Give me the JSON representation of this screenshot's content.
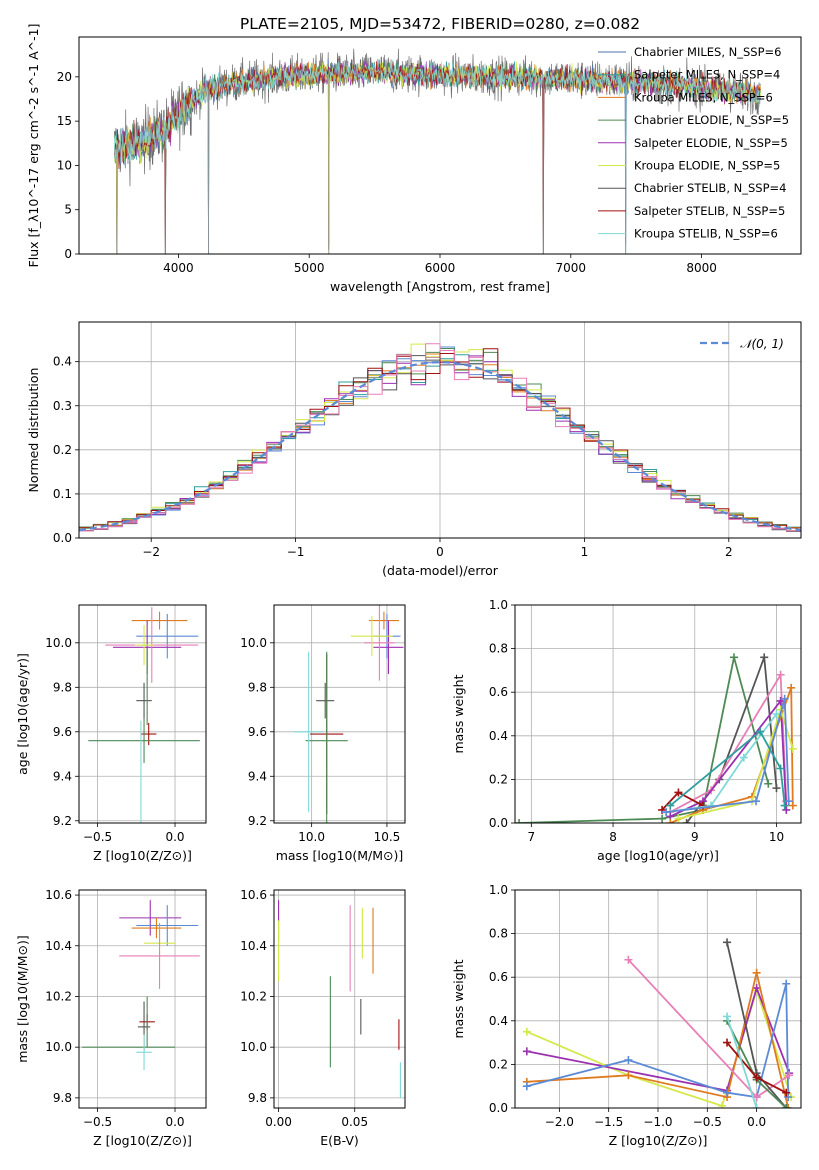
{
  "page_title": "PLATE=2105, MJD=53472, FIBERID=0280, z=0.082",
  "colors": {
    "Chabrier MILES": "#4c72b0",
    "Salpeter MILES": "#2e9e9e",
    "Kroupa MILES": "#e07b1f",
    "Chabrier ELODIE": "#4e8a55",
    "Salpeter ELODIE": "#9b30b0",
    "Kroupa ELODIE": "#d5e84a",
    "Chabrier STELIB": "#555555",
    "Salpeter STELIB": "#a01010",
    "Kroupa STELIB": "#7fd8d8",
    "pink": "#e87fb8",
    "blue": "#5b8ad6",
    "gauss": "#5b8ad6"
  },
  "chart_data": [
    {
      "id": "spectrum",
      "type": "line",
      "title": "PLATE=2105, MJD=53472, FIBERID=0280, z=0.082",
      "xlabel": "wavelength [Angstrom, rest frame]",
      "ylabel": "Flux [f_λ10^-17 erg cm^-2 s^-1 A^-1]",
      "xlim": [
        3240,
        8760
      ],
      "ylim": [
        0,
        24.5
      ],
      "xticks": [
        4000,
        5000,
        6000,
        7000,
        8000
      ],
      "yticks": [
        0,
        5,
        10,
        15,
        20
      ],
      "grid": false,
      "legend_position": "right",
      "series": [
        {
          "name": "Chabrier MILES, N_SSP=6"
        },
        {
          "name": "Salpeter MILES, N_SSP=4"
        },
        {
          "name": "Kroupa MILES, N_SSP=6"
        },
        {
          "name": "Chabrier ELODIE, N_SSP=5"
        },
        {
          "name": "Salpeter ELODIE, N_SSP=5"
        },
        {
          "name": "Kroupa ELODIE, N_SSP=5"
        },
        {
          "name": "Chabrier STELIB, N_SSP=4"
        },
        {
          "name": "Salpeter STELIB, N_SSP=5"
        },
        {
          "name": "Kroupa STELIB, N_SSP=6"
        }
      ],
      "continuum_nodes": {
        "x": [
          3500,
          3700,
          3900,
          4000,
          4200,
          4500,
          5000,
          5500,
          6000,
          6500,
          7000,
          7500,
          8000,
          8450
        ],
        "y": [
          12,
          12.5,
          14,
          16,
          18.5,
          19.5,
          20.3,
          20.5,
          20.2,
          20,
          19.8,
          19.4,
          18.8,
          18
        ]
      },
      "absorption_lines": [
        {
          "x": 3530,
          "depth": 20
        },
        {
          "x": 3900,
          "depth": 19
        },
        {
          "x": 4230,
          "depth": 22
        },
        {
          "x": 5150,
          "depth": 20
        },
        {
          "x": 6790,
          "depth": 20
        },
        {
          "x": 7420,
          "depth": 19
        }
      ]
    },
    {
      "id": "residuals",
      "type": "bar",
      "xlabel": "(data-model)/error",
      "ylabel": "Normed distribution",
      "xlim": [
        -2.5,
        2.5
      ],
      "ylim": [
        0,
        0.49
      ],
      "xticks": [
        -2,
        -1,
        0,
        1,
        2
      ],
      "yticks": [
        0.0,
        0.1,
        0.2,
        0.3,
        0.4
      ],
      "grid": true,
      "legend": "𝒩(0, 1)",
      "legend_position": "top-right",
      "bin_width": 0.1,
      "gauss_line": "dashed normal curve N(0,1)"
    },
    {
      "id": "age_vs_Z",
      "type": "scatter",
      "xlabel": "Z [log10(Z/Z⊙)]",
      "ylabel": "age  [log10(age/yr)]",
      "xlim": [
        -0.62,
        0.2
      ],
      "ylim": [
        9.19,
        10.17
      ],
      "xticks": [
        -0.5,
        0.0
      ],
      "yticks": [
        9.2,
        9.4,
        9.6,
        9.8,
        10.0
      ],
      "grid": true,
      "points": [
        {
          "c": "Kroupa MILES",
          "x": -0.1,
          "y": 10.1,
          "xe": 0.18,
          "ye": 0.04
        },
        {
          "c": "blue",
          "x": -0.05,
          "y": 10.03,
          "xe": 0.2,
          "ye": 0.1
        },
        {
          "c": "Salpeter ELODIE",
          "x": -0.18,
          "y": 9.98,
          "xe": 0.22,
          "ye": 0.12
        },
        {
          "c": "pink",
          "x": -0.15,
          "y": 9.99,
          "xe": 0.3,
          "ye": 0.17
        },
        {
          "c": "Kroupa ELODIE",
          "x": -0.2,
          "y": 9.99,
          "xe": 0.06,
          "ye": 0.09
        },
        {
          "c": "Chabrier STELIB",
          "x": -0.2,
          "y": 9.74,
          "xe": 0.05,
          "ye": 0.08
        },
        {
          "c": "Salpeter STELIB",
          "x": -0.17,
          "y": 9.59,
          "xe": 0.05,
          "ye": 0.05
        },
        {
          "c": "Chabrier ELODIE",
          "x": -0.2,
          "y": 9.56,
          "xe": 0.36,
          "ye": 0.1
        },
        {
          "c": "Chabrier ELODIE",
          "x": -0.18,
          "y": 9.8,
          "xe": 0.0,
          "ye": 0.17
        },
        {
          "c": "Kroupa STELIB",
          "x": -0.22,
          "y": 9.42,
          "xe": 0.0,
          "ye": 0.23
        }
      ]
    },
    {
      "id": "age_vs_mass",
      "type": "scatter",
      "xlabel": "mass [log10(M/M⊙)]",
      "ylabel": "",
      "xlim": [
        9.75,
        10.62
      ],
      "ylim": [
        9.19,
        10.17
      ],
      "xticks": [
        10.0,
        10.5
      ],
      "yticks": [
        9.2,
        9.4,
        9.6,
        9.8,
        10.0
      ],
      "grid": true,
      "points": [
        {
          "c": "Kroupa MILES",
          "x": 10.48,
          "y": 10.1,
          "xe": 0.1,
          "ye": 0.04
        },
        {
          "c": "blue",
          "x": 10.5,
          "y": 10.03,
          "xe": 0.09,
          "ye": 0.1
        },
        {
          "c": "Salpeter ELODIE",
          "x": 10.51,
          "y": 9.98,
          "xe": 0.1,
          "ye": 0.12
        },
        {
          "c": "pink",
          "x": 10.45,
          "y": 10.0,
          "xe": 0.1,
          "ye": 0.17
        },
        {
          "c": "Kroupa ELODIE",
          "x": 10.4,
          "y": 10.03,
          "xe": 0.14,
          "ye": 0.09
        },
        {
          "c": "Chabrier STELIB",
          "x": 10.09,
          "y": 9.74,
          "xe": 0.06,
          "ye": 0.08
        },
        {
          "c": "Salpeter STELIB",
          "x": 10.1,
          "y": 9.59,
          "xe": 0.11,
          "ye": 0.36
        },
        {
          "c": "Chabrier ELODIE",
          "x": 10.1,
          "y": 9.56,
          "xe": 0.14,
          "ye": 0.4
        },
        {
          "c": "Kroupa STELIB",
          "x": 9.98,
          "y": 9.6,
          "xe": 0.1,
          "ye": 0.36
        }
      ]
    },
    {
      "id": "mw_vs_age",
      "type": "line",
      "xlabel": "age  [log10(age/yr)]",
      "ylabel": "mass weight",
      "xlim": [
        6.8,
        10.3
      ],
      "ylim": [
        0,
        1.0
      ],
      "xticks": [
        7,
        8,
        9,
        10
      ],
      "yticks": [
        0.0,
        0.2,
        0.4,
        0.6,
        0.8,
        1.0
      ],
      "grid": true,
      "series": [
        {
          "c": "Chabrier ELODIE",
          "x": [
            6.85,
            8.6,
            9.1,
            9.48,
            9.9
          ],
          "y": [
            0.0,
            0.02,
            0.06,
            0.76,
            0.18
          ]
        },
        {
          "c": "Chabrier STELIB",
          "x": [
            8.9,
            9.3,
            9.85,
            10.0
          ],
          "y": [
            0.0,
            0.2,
            0.76,
            0.16
          ]
        },
        {
          "c": "pink",
          "x": [
            8.7,
            9.2,
            10.05,
            10.12
          ],
          "y": [
            0.05,
            0.15,
            0.68,
            0.1
          ]
        },
        {
          "c": "Salpeter ELODIE",
          "x": [
            8.7,
            9.1,
            10.05,
            10.12
          ],
          "y": [
            0.03,
            0.1,
            0.56,
            0.06
          ]
        },
        {
          "c": "Kroupa MILES",
          "x": [
            8.7,
            9.1,
            9.7,
            10.18,
            10.2
          ],
          "y": [
            0.0,
            0.06,
            0.12,
            0.62,
            0.08
          ]
        },
        {
          "c": "Kroupa ELODIE",
          "x": [
            8.8,
            9.7,
            10.05,
            10.2
          ],
          "y": [
            0.02,
            0.1,
            0.52,
            0.34
          ]
        },
        {
          "c": "Salpeter STELIB",
          "x": [
            8.6,
            8.8,
            9.1
          ],
          "y": [
            0.06,
            0.14,
            0.08
          ]
        },
        {
          "c": "Kroupa STELIB",
          "x": [
            8.65,
            9.2,
            9.6,
            10.0
          ],
          "y": [
            0.05,
            0.08,
            0.3,
            0.5
          ]
        },
        {
          "c": "blue",
          "x": [
            8.65,
            9.75,
            10.1,
            10.15
          ],
          "y": [
            0.05,
            0.1,
            0.57,
            0.1
          ]
        },
        {
          "c": "Salpeter MILES",
          "x": [
            8.7,
            9.8,
            10.05,
            10.1
          ],
          "y": [
            0.08,
            0.42,
            0.25,
            0.08
          ]
        }
      ]
    },
    {
      "id": "mass_vs_Z",
      "type": "scatter",
      "xlabel": "Z [log10(Z/Z⊙)]",
      "ylabel": "mass [log10(M/M⊙)]",
      "xlim": [
        -0.62,
        0.2
      ],
      "ylim": [
        9.76,
        10.62
      ],
      "xticks": [
        -0.5,
        0.0
      ],
      "yticks": [
        9.8,
        10.0,
        10.2,
        10.4,
        10.6
      ],
      "grid": true,
      "points": [
        {
          "c": "Salpeter ELODIE",
          "x": -0.16,
          "y": 10.51,
          "xe": 0.2,
          "ye": 0.07
        },
        {
          "c": "blue",
          "x": -0.05,
          "y": 10.48,
          "xe": 0.2,
          "ye": 0.08
        },
        {
          "c": "Kroupa MILES",
          "x": -0.12,
          "y": 10.47,
          "xe": 0.16,
          "ye": 0.04
        },
        {
          "c": "Kroupa ELODIE",
          "x": -0.1,
          "y": 10.41,
          "xe": 0.1,
          "ye": 0.07
        },
        {
          "c": "pink",
          "x": -0.1,
          "y": 10.36,
          "xe": 0.26,
          "ye": 0.13
        },
        {
          "c": "Chabrier STELIB",
          "x": -0.2,
          "y": 10.08,
          "xe": 0.04,
          "ye": 0.1
        },
        {
          "c": "Salpeter STELIB",
          "x": -0.18,
          "y": 10.1,
          "xe": 0.05,
          "ye": 0.03
        },
        {
          "c": "Chabrier ELODIE",
          "x": -0.3,
          "y": 10.0,
          "xe": 0.3,
          "ye": 0.0
        },
        {
          "c": "Chabrier ELODIE",
          "x": -0.18,
          "y": 10.1,
          "xe": 0.0,
          "ye": 0.1
        },
        {
          "c": "Kroupa STELIB",
          "x": -0.2,
          "y": 9.98,
          "xe": 0.05,
          "ye": 0.07
        }
      ]
    },
    {
      "id": "mass_vs_ebv",
      "type": "scatter",
      "xlabel": "E(B-V)",
      "ylabel": "",
      "xlim": [
        -0.003,
        0.083
      ],
      "ylim": [
        9.76,
        10.62
      ],
      "xticks": [
        0.0,
        0.05
      ],
      "yticks": [
        9.8,
        10.0,
        10.2,
        10.4,
        10.6
      ],
      "grid": true,
      "points": [
        {
          "c": "Salpeter ELODIE",
          "x": 0.0,
          "y": 10.5,
          "xe": 0,
          "ye": 0.08
        },
        {
          "c": "Kroupa ELODIE",
          "x": 0.0,
          "y": 10.38,
          "xe": 0,
          "ye": 0.12
        },
        {
          "c": "pink",
          "x": 0.047,
          "y": 10.39,
          "xe": 0,
          "ye": 0.17
        },
        {
          "c": "Kroupa MILES",
          "x": 0.062,
          "y": 10.42,
          "xe": 0,
          "ye": 0.13
        },
        {
          "c": "Kroupa ELODIE",
          "x": 0.055,
          "y": 10.45,
          "xe": 0,
          "ye": 0.1
        },
        {
          "c": "Chabrier STELIB",
          "x": 0.054,
          "y": 10.12,
          "xe": 0,
          "ye": 0.07
        },
        {
          "c": "Chabrier ELODIE",
          "x": 0.034,
          "y": 10.1,
          "xe": 0,
          "ye": 0.18
        },
        {
          "c": "Salpeter STELIB",
          "x": 0.079,
          "y": 10.05,
          "xe": 0,
          "ye": 0.06
        },
        {
          "c": "Kroupa STELIB",
          "x": 0.08,
          "y": 9.87,
          "xe": 0,
          "ye": 0.07
        }
      ]
    },
    {
      "id": "mw_vs_Z",
      "type": "line",
      "xlabel": "Z [log10(Z/Z⊙)]",
      "ylabel": "mass weight",
      "xlim": [
        -2.45,
        0.45
      ],
      "ylim": [
        0,
        1.0
      ],
      "xticks": [
        -2.0,
        -1.5,
        -1.0,
        -0.5,
        0.0
      ],
      "yticks": [
        0.0,
        0.2,
        0.4,
        0.6,
        0.8,
        1.0
      ],
      "grid": true,
      "series": [
        {
          "c": "Kroupa ELODIE",
          "x": [
            -2.33,
            -1.3,
            -0.35,
            0.0,
            0.35
          ],
          "y": [
            0.35,
            0.15,
            0.01,
            0.54,
            0.05
          ]
        },
        {
          "c": "Salpeter ELODIE",
          "x": [
            -2.33,
            -0.3,
            0.0,
            0.33
          ],
          "y": [
            0.26,
            0.08,
            0.55,
            0.16
          ]
        },
        {
          "c": "Kroupa MILES",
          "x": [
            -2.33,
            -1.3,
            -0.3,
            0.0,
            0.32
          ],
          "y": [
            0.12,
            0.15,
            0.05,
            0.62,
            0.0
          ]
        },
        {
          "c": "blue",
          "x": [
            -2.33,
            -1.3,
            -0.3,
            0.0,
            0.3,
            0.32
          ],
          "y": [
            0.1,
            0.22,
            0.07,
            0.05,
            0.57,
            0.05
          ]
        },
        {
          "c": "pink",
          "x": [
            -1.3,
            0.0,
            0.33
          ],
          "y": [
            0.68,
            0.05,
            0.15
          ]
        },
        {
          "c": "Chabrier STELIB",
          "x": [
            -0.3,
            0.0,
            0.3
          ],
          "y": [
            0.76,
            0.16,
            0.0
          ]
        },
        {
          "c": "Chabrier ELODIE",
          "x": [
            -0.3,
            0.0,
            0.3
          ],
          "y": [
            0.4,
            0.13,
            0.0
          ]
        },
        {
          "c": "Salpeter STELIB",
          "x": [
            -0.3,
            0.0,
            0.3
          ],
          "y": [
            0.3,
            0.14,
            0.07
          ]
        },
        {
          "c": "Kroupa STELIB",
          "x": [
            -0.3,
            0.0
          ],
          "y": [
            0.42,
            0.0
          ]
        }
      ]
    }
  ]
}
